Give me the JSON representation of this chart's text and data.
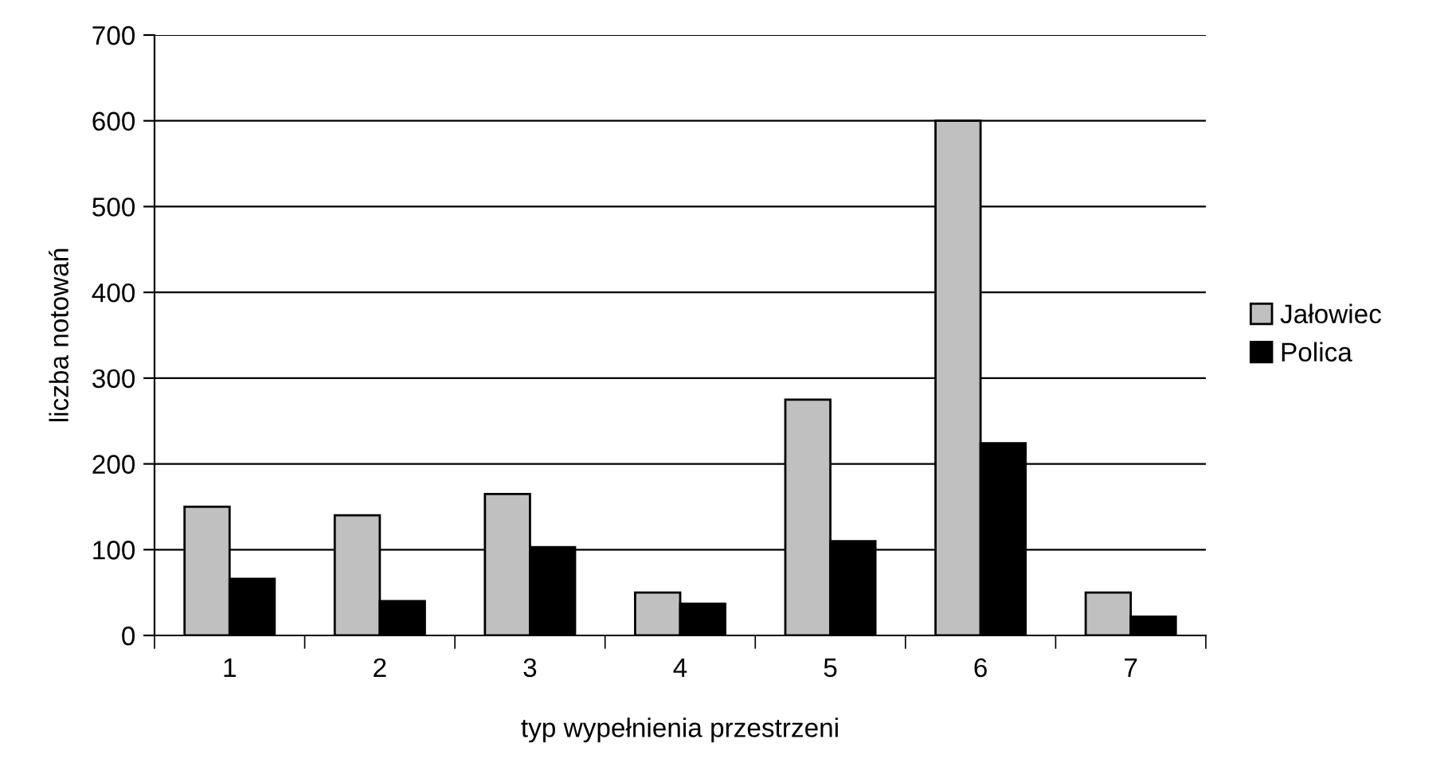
{
  "chart_data": {
    "type": "bar",
    "xlabel": "typ wypełnienia przestrzeni",
    "ylabel": "liczba notowań",
    "categories": [
      "1",
      "2",
      "3",
      "4",
      "5",
      "6",
      "7"
    ],
    "series": [
      {
        "name": "Jałowiec",
        "color": "#c0c0c0",
        "values": [
          150,
          140,
          165,
          50,
          275,
          600,
          50
        ]
      },
      {
        "name": "Polica",
        "color": "#000000",
        "values": [
          66,
          40,
          103,
          37,
          110,
          224,
          22
        ]
      }
    ],
    "ylim": [
      0,
      700
    ],
    "yticks": [
      0,
      100,
      200,
      300,
      400,
      500,
      600,
      700
    ],
    "grid": "y",
    "legend": "right"
  }
}
